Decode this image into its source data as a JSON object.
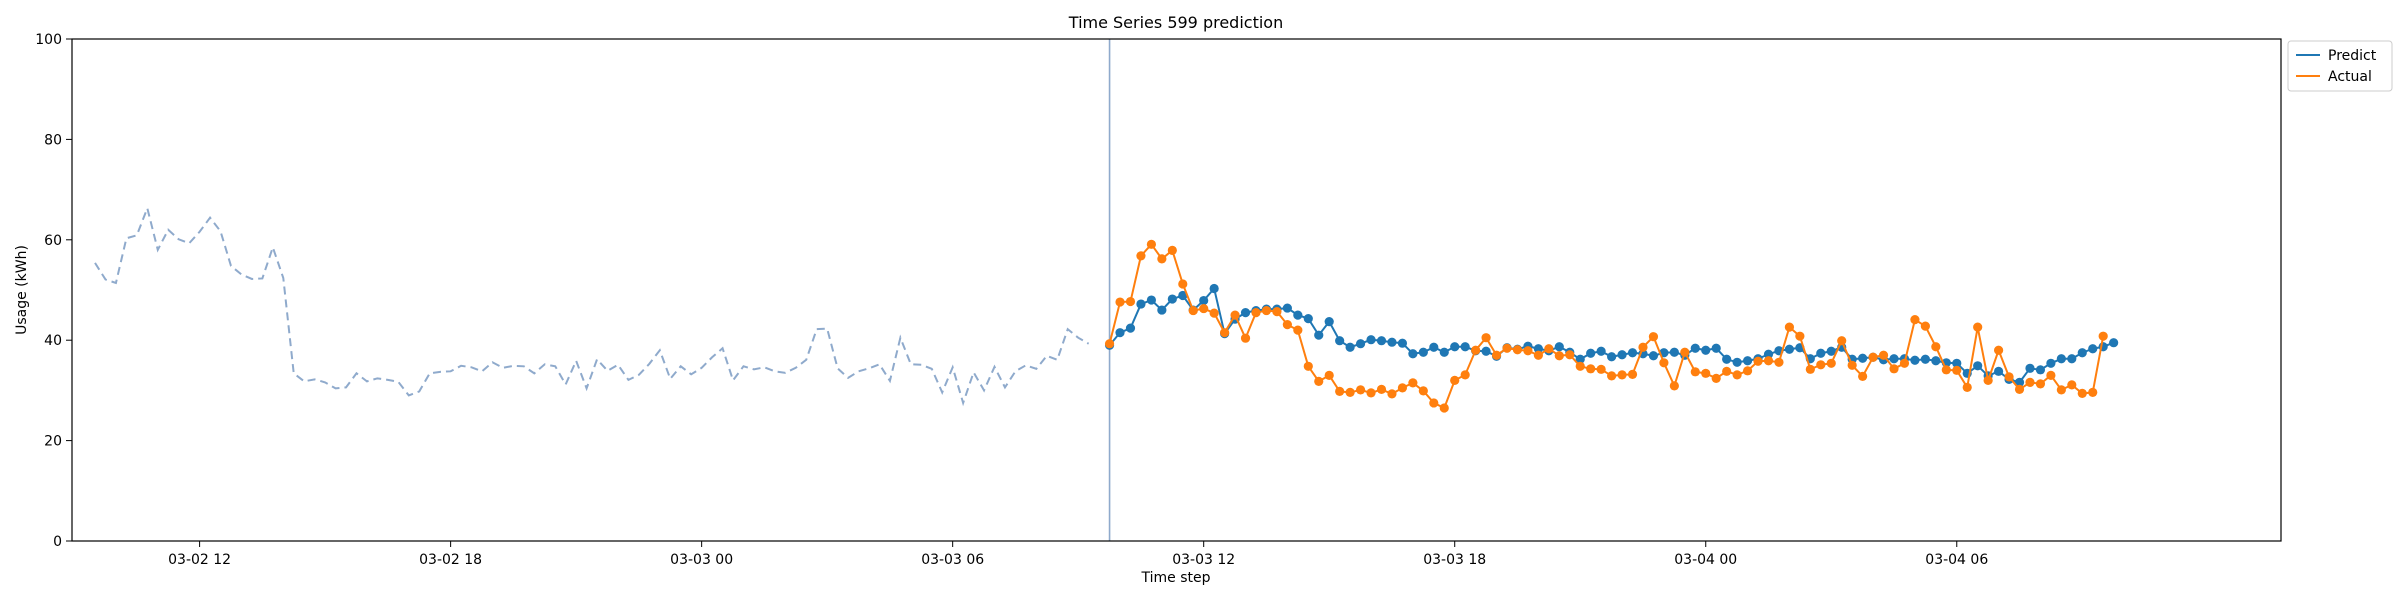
{
  "chart_data": {
    "type": "line",
    "title": "Time Series 599 prediction",
    "xlabel": "Time step",
    "ylabel": "Usage (kWh)",
    "ylim": [
      0,
      100
    ],
    "yticks": [
      0,
      20,
      40,
      60,
      80,
      100
    ],
    "xlim_hours": [
      -9.05,
      43.75
    ],
    "x_ticks": [
      {
        "label": "03-02 12",
        "hour": -6
      },
      {
        "label": "03-02 18",
        "hour": 0
      },
      {
        "label": "03-03 00",
        "hour": 6
      },
      {
        "label": "03-03 06",
        "hour": 12
      },
      {
        "label": "03-03 12",
        "hour": 18
      },
      {
        "label": "03-03 18",
        "hour": 24
      },
      {
        "label": "03-04 00",
        "hour": 30
      },
      {
        "label": "03-04 06",
        "hour": 36
      }
    ],
    "split_hour": 15.75,
    "history": {
      "start_hour": -8.5,
      "step_hours": 0.25,
      "color": "#8faacc",
      "values": [
        55.4,
        52.1,
        51.4,
        60.3,
        60.9,
        66.3,
        58.0,
        62.0,
        60.1,
        59.3,
        61.6,
        64.4,
        61.7,
        54.8,
        53.1,
        52.2,
        52.3,
        58.5,
        52.4,
        33.4,
        31.8,
        32.2,
        31.6,
        30.4,
        30.6,
        33.4,
        31.8,
        32.4,
        32.1,
        31.7,
        29.0,
        29.8,
        33.4,
        33.7,
        33.8,
        34.9,
        34.6,
        33.8,
        35.6,
        34.5,
        34.9,
        34.8,
        33.4,
        35.2,
        34.8,
        31.2,
        35.9,
        30.4,
        36.2,
        33.9,
        35.1,
        32.1,
        33.1,
        35.3,
        38.0,
        32.3,
        34.8,
        33.2,
        34.5,
        36.6,
        38.4,
        32.0,
        34.8,
        34.2,
        34.6,
        33.8,
        33.5,
        34.5,
        36.1,
        42.2,
        42.3,
        34.4,
        32.5,
        33.8,
        34.4,
        35.2,
        31.9,
        40.5,
        35.2,
        35.1,
        34.3,
        29.6,
        34.6,
        27.5,
        33.6,
        30.0,
        34.7,
        30.6,
        33.8,
        35.0,
        34.3,
        36.9,
        36.1,
        42.2,
        40.5,
        39.3
      ]
    },
    "forecast_start_hour": 15.75,
    "step_hours": 0.25,
    "legend": "top-right",
    "series": [
      {
        "name": "Predict",
        "color": "#1f77b4",
        "values": [
          39.0,
          41.5,
          42.4,
          47.2,
          48.0,
          46.0,
          48.2,
          48.9,
          46.0,
          47.9,
          50.3,
          41.3,
          44.2,
          45.5,
          45.9,
          46.2,
          46.2,
          46.4,
          45.0,
          44.3,
          41.0,
          43.7,
          39.9,
          38.6,
          39.3,
          40.1,
          39.9,
          39.6,
          39.4,
          37.3,
          37.6,
          38.6,
          37.6,
          38.7,
          38.7,
          37.9,
          37.8,
          36.8,
          38.5,
          38.2,
          38.8,
          38.3,
          37.9,
          38.7,
          37.6,
          36.2,
          37.4,
          37.8,
          36.7,
          37.1,
          37.5,
          37.3,
          36.9,
          37.5,
          37.6,
          37.0,
          38.4,
          38.0,
          38.4,
          36.2,
          35.6,
          35.9,
          36.3,
          37.2,
          37.9,
          38.2,
          38.5,
          36.3,
          37.4,
          37.8,
          38.6,
          36.2,
          36.4,
          36.6,
          36.1,
          36.3,
          36.3,
          36.0,
          36.2,
          35.9,
          35.5,
          35.4,
          33.4,
          34.9,
          32.9,
          33.8,
          32.2,
          31.6,
          34.4,
          34.1,
          35.4,
          36.3,
          36.3,
          37.5,
          38.3,
          38.7,
          39.5
        ]
      },
      {
        "name": "Actual",
        "color": "#ff7f0e",
        "values": [
          39.3,
          47.6,
          47.7,
          56.8,
          59.1,
          56.2,
          57.9,
          51.2,
          45.9,
          46.3,
          45.4,
          41.5,
          45.0,
          40.4,
          45.5,
          45.9,
          45.7,
          43.1,
          42.0,
          34.8,
          31.8,
          33.0,
          29.8,
          29.6,
          30.1,
          29.5,
          30.2,
          29.3,
          30.5,
          31.5,
          29.9,
          27.5,
          26.5,
          32.0,
          33.1,
          38.0,
          40.5,
          37.0,
          38.4,
          38.1,
          37.9,
          37.0,
          38.3,
          36.9,
          37.1,
          34.8,
          34.3,
          34.2,
          32.9,
          33.1,
          33.2,
          38.6,
          40.7,
          35.5,
          30.9,
          37.6,
          33.7,
          33.4,
          32.4,
          33.8,
          33.1,
          33.9,
          35.8,
          35.9,
          35.6,
          42.6,
          40.8,
          34.2,
          35.1,
          35.4,
          39.9,
          35.0,
          32.8,
          36.6,
          37.0,
          34.3,
          35.4,
          44.1,
          42.8,
          38.7,
          34.1,
          34.0,
          30.6,
          42.6,
          32.0,
          38.0,
          32.7,
          30.2,
          31.6,
          31.3,
          33.0,
          30.1,
          31.1,
          29.4,
          29.6,
          40.8
        ]
      }
    ]
  }
}
